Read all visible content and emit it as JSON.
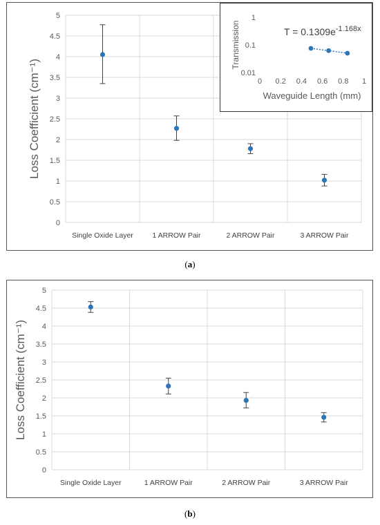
{
  "chart_data": [
    {
      "id": "a",
      "type": "scatter",
      "title": "",
      "ylabel": "Loss Coefficient (cm⁻¹)",
      "xlabel": "",
      "categories": [
        "Single Oxide Layer",
        "1 ARROW Pair",
        "2 ARROW Pair",
        "3 ARROW Pair"
      ],
      "values": [
        4.05,
        2.27,
        1.78,
        1.02
      ],
      "error_low": [
        3.35,
        1.98,
        1.66,
        0.88
      ],
      "error_high": [
        4.77,
        2.57,
        1.9,
        1.16
      ],
      "ylim": [
        0,
        5
      ],
      "yticks": [
        "0",
        "0.5",
        "1",
        "1.5",
        "2",
        "2.5",
        "3",
        "3.5",
        "4",
        "4.5",
        "5"
      ],
      "grid": true,
      "color": "#2e75b6",
      "inset": {
        "type": "scatter",
        "xlabel": "Waveguide Length (mm)",
        "ylabel": "Transmission",
        "x": [
          0.49,
          0.66,
          0.84
        ],
        "y": [
          0.075,
          0.062,
          0.05
        ],
        "xlim": [
          0,
          1
        ],
        "xticks": [
          "0",
          "0.2",
          "0.4",
          "0.6",
          "0.8",
          "1"
        ],
        "ylim": [
          0.01,
          1
        ],
        "yscale": "log",
        "yticks": [
          "0.01",
          "0.1",
          "1"
        ],
        "trendline": "dotted",
        "equation": "T = 0.1309e",
        "equation_exp": "-1.168x"
      }
    },
    {
      "id": "b",
      "type": "scatter",
      "title": "",
      "ylabel": "Loss Coefficient (cm⁻¹)",
      "xlabel": "",
      "categories": [
        "Single Oxide Layer",
        "1 ARROW Pair",
        "2 ARROW Pair",
        "3 ARROW Pair"
      ],
      "values": [
        4.53,
        2.33,
        1.93,
        1.46
      ],
      "error_low": [
        4.38,
        2.11,
        1.72,
        1.33
      ],
      "error_high": [
        4.68,
        2.55,
        2.15,
        1.59
      ],
      "ylim": [
        0,
        5
      ],
      "yticks": [
        "0",
        "0.5",
        "1",
        "1.5",
        "2",
        "2.5",
        "3",
        "3.5",
        "4",
        "4.5",
        "5"
      ],
      "grid": true,
      "color": "#2e75b6"
    }
  ],
  "captions": {
    "a": "a",
    "b": "b"
  }
}
